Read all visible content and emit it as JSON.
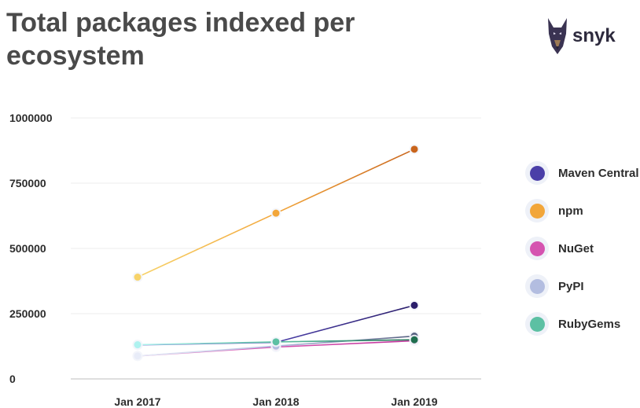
{
  "header": {
    "title": "Total packages indexed per ecosystem"
  },
  "brand": {
    "name": "snyk",
    "icon": "doberman-logo-icon"
  },
  "chart_data": {
    "type": "line",
    "title": "Total packages indexed per ecosystem",
    "xlabel": "",
    "ylabel": "",
    "categories": [
      "Jan 2017",
      "Jan 2018",
      "Jan 2019"
    ],
    "ylim": [
      0,
      1000000
    ],
    "yticks": [
      "0",
      "250000",
      "500000",
      "750000",
      "1000000"
    ],
    "grid": true,
    "legend_position": "right",
    "series": [
      {
        "name": "Maven Central",
        "values": [
          130000,
          140000,
          282000
        ],
        "color": "#4b3fa8",
        "start_color": "#8f88d6",
        "end_color": "#2a1d6b"
      },
      {
        "name": "npm",
        "values": [
          390000,
          635000,
          880000
        ],
        "color": "#f2a63a",
        "start_color": "#f7d36a",
        "end_color": "#c9651c"
      },
      {
        "name": "NuGet",
        "values": [
          88000,
          122000,
          146000
        ],
        "color": "#d553b0",
        "start_color": "#e9a1d6",
        "end_color": "#c0309a"
      },
      {
        "name": "PyPI",
        "values": [
          88000,
          126000,
          164000
        ],
        "color": "#b3bde0",
        "start_color": "#e8ecf8",
        "end_color": "#566080"
      },
      {
        "name": "RubyGems",
        "values": [
          131000,
          142000,
          150000
        ],
        "color": "#5cc0a3",
        "start_color": "#aef2ef",
        "end_color": "#1f6e4f"
      }
    ]
  }
}
